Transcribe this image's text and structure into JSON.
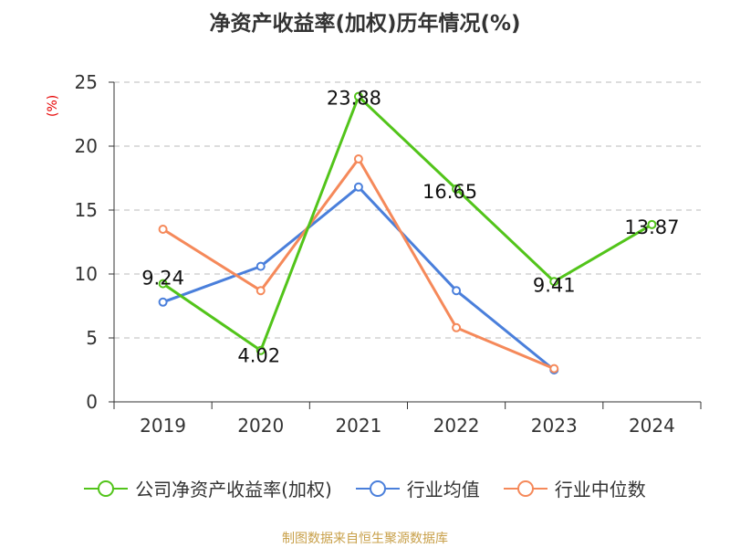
{
  "title": "净资产收益率(加权)历年情况(%)",
  "source": "制图数据来自恒生聚源数据库",
  "chart_data": {
    "type": "line",
    "categories": [
      "2019",
      "2020",
      "2021",
      "2022",
      "2023",
      "2024"
    ],
    "ylabel": "(%)",
    "ylim": [
      0,
      25
    ],
    "yticks": [
      0,
      5,
      10,
      15,
      20,
      25
    ],
    "grid": true,
    "legend_position": "bottom",
    "series": [
      {
        "name": "公司净资产收益率(加权)",
        "color": "#52c41a",
        "values": [
          9.24,
          4.02,
          23.88,
          16.65,
          9.41,
          13.87
        ],
        "labels": [
          "9.24",
          "4.02",
          "23.88",
          "16.65",
          "9.41",
          "13.87"
        ]
      },
      {
        "name": "行业均值",
        "color": "#4a7fdb",
        "values": [
          7.8,
          10.6,
          16.8,
          8.7,
          2.5,
          null
        ]
      },
      {
        "name": "行业中位数",
        "color": "#f5895a",
        "values": [
          13.5,
          8.7,
          19.0,
          5.8,
          2.6,
          null
        ]
      }
    ]
  }
}
